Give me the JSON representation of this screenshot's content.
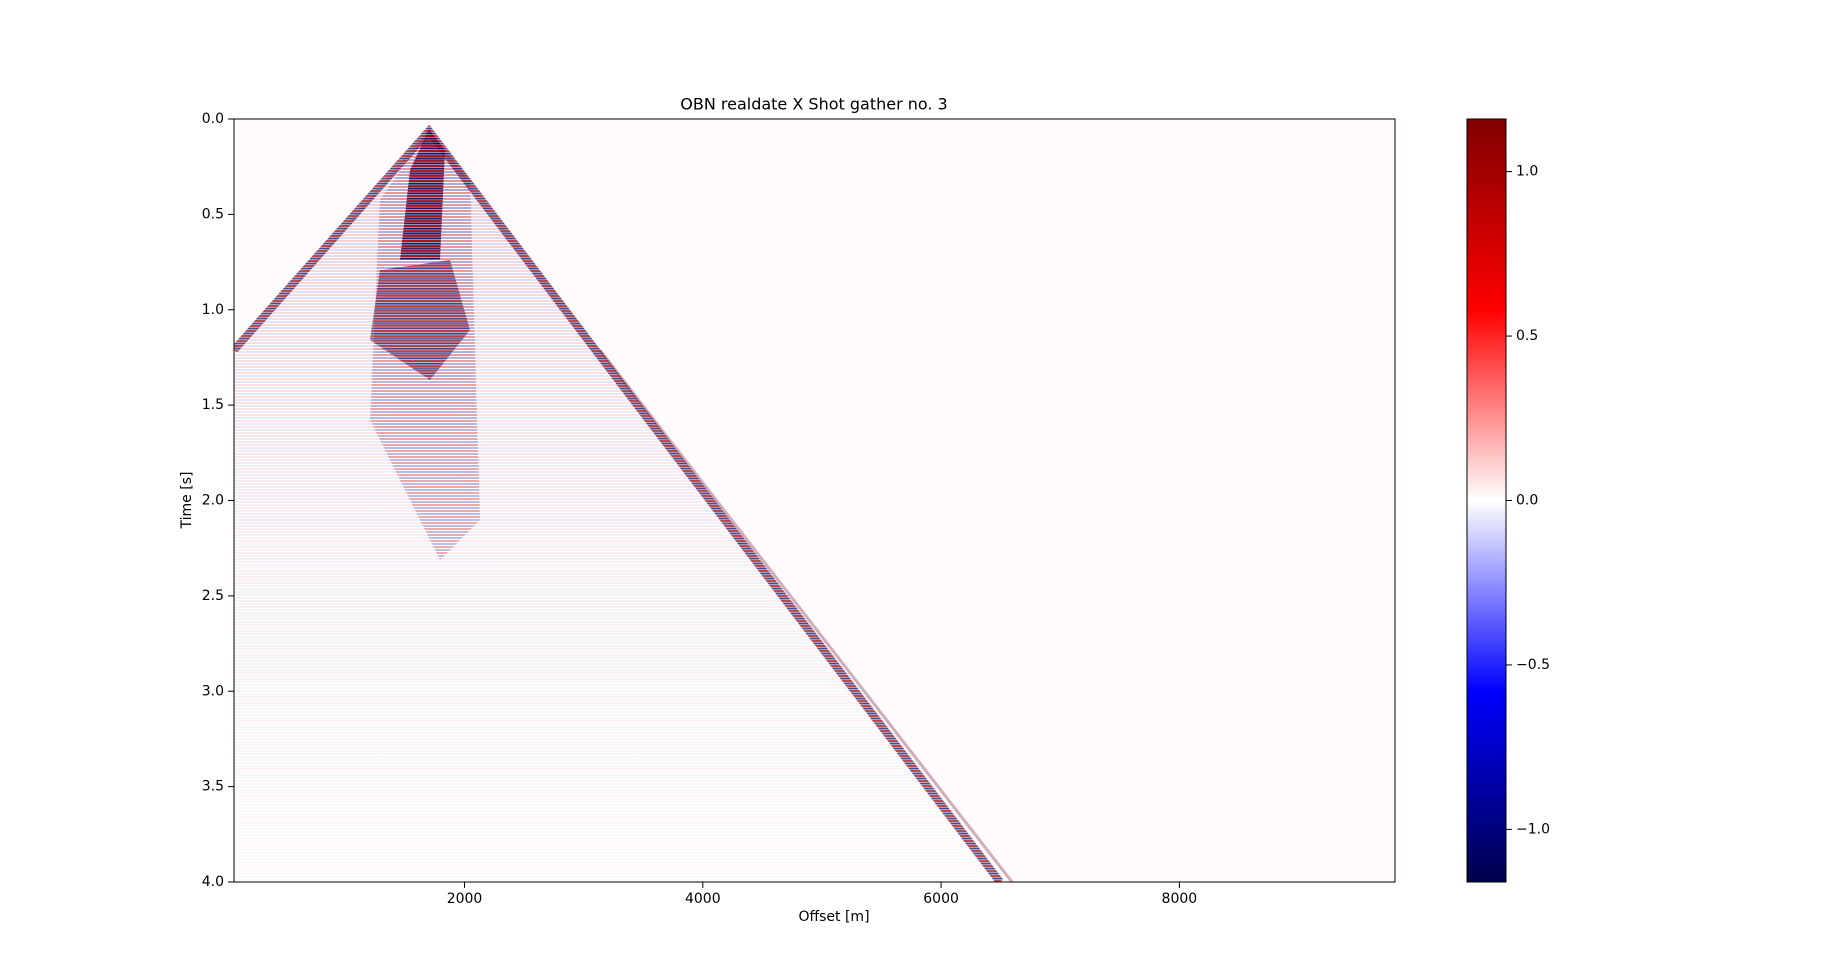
{
  "chart_data": {
    "type": "heatmap",
    "title": "OBN realdate X Shot gather no. 3",
    "x_label": "Offset [m]",
    "y_label": "Time [s]",
    "xlim": [
      65,
      9810
    ],
    "xticks": [
      2000,
      4000,
      6000,
      8000
    ],
    "ylim": [
      4.0,
      0.0
    ],
    "yticks": [
      {
        "value": 0,
        "label": "0.0"
      },
      {
        "value": 0.5,
        "label": "0.5"
      },
      {
        "value": 1,
        "label": "1.0"
      },
      {
        "value": 1.5,
        "label": "1.5"
      },
      {
        "value": 2,
        "label": "2.0"
      },
      {
        "value": 2.5,
        "label": "2.5"
      },
      {
        "value": 3,
        "label": "3.0"
      },
      {
        "value": 3.5,
        "label": "3.5"
      },
      {
        "value": 4,
        "label": "4.0"
      }
    ],
    "colormap": "seismic",
    "colormap_colors": [
      "#00004c",
      "#0000ff",
      "#ffffff",
      "#ff0000",
      "#800000"
    ],
    "clim": [
      -1.16,
      1.16
    ],
    "cticks": [
      {
        "value": -1,
        "label": "−1.0"
      },
      {
        "value": -0.5,
        "label": "−0.5"
      },
      {
        "value": 0,
        "label": "0.0"
      },
      {
        "value": 0.5,
        "label": "0.5"
      },
      {
        "value": 1,
        "label": "1.0"
      }
    ]
  }
}
